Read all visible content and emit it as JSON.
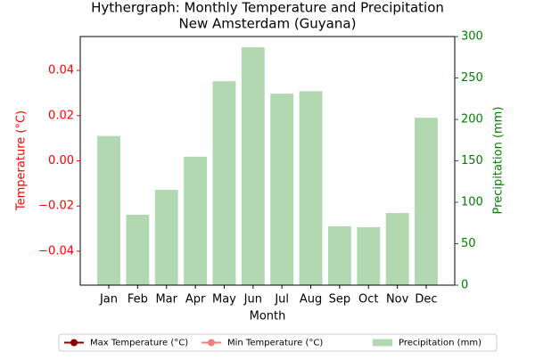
{
  "chart_data": {
    "type": "combo",
    "title": [
      "Hythergraph: Monthly Temperature and Precipitation",
      "New Amsterdam (Guyana)"
    ],
    "x_label": "Month",
    "y_label": "Temperature (°C)",
    "y2_label": "Precipitation (mm)",
    "categories": [
      "Jan",
      "Feb",
      "Mar",
      "Apr",
      "May",
      "Jun",
      "Jul",
      "Aug",
      "Sep",
      "Oct",
      "Nov",
      "Dec"
    ],
    "series": [
      {
        "name": "Max Temperature (°C)",
        "type": "line",
        "marker": true,
        "color": "#8b0000",
        "axis": "y",
        "values": [
          null,
          null,
          null,
          null,
          null,
          null,
          null,
          null,
          null,
          null,
          null,
          null
        ]
      },
      {
        "name": "Min Temperature (°C)",
        "type": "line",
        "marker": true,
        "color": "#f08080",
        "axis": "y",
        "values": [
          null,
          null,
          null,
          null,
          null,
          null,
          null,
          null,
          null,
          null,
          null,
          null
        ]
      },
      {
        "name": "Precipitation (mm)",
        "type": "bar",
        "color": "#b2d8b2",
        "axis": "y2",
        "values": [
          180,
          85,
          115,
          155,
          246,
          287,
          231,
          234,
          71,
          70,
          87,
          202
        ]
      }
    ],
    "ylim": [
      -0.055,
      0.055
    ],
    "yticks": [
      {
        "value": -0.04,
        "label": "−0.04"
      },
      {
        "value": -0.02,
        "label": "−0.02"
      },
      {
        "value": 0,
        "label": "0.00"
      },
      0.02,
      0.04
    ],
    "y_color": "#ff0000",
    "y2lim": [
      0,
      300
    ],
    "y2ticks": [
      0,
      50,
      100,
      150,
      200,
      250,
      300
    ],
    "y2_color": "#008000",
    "legend": "bottom"
  }
}
